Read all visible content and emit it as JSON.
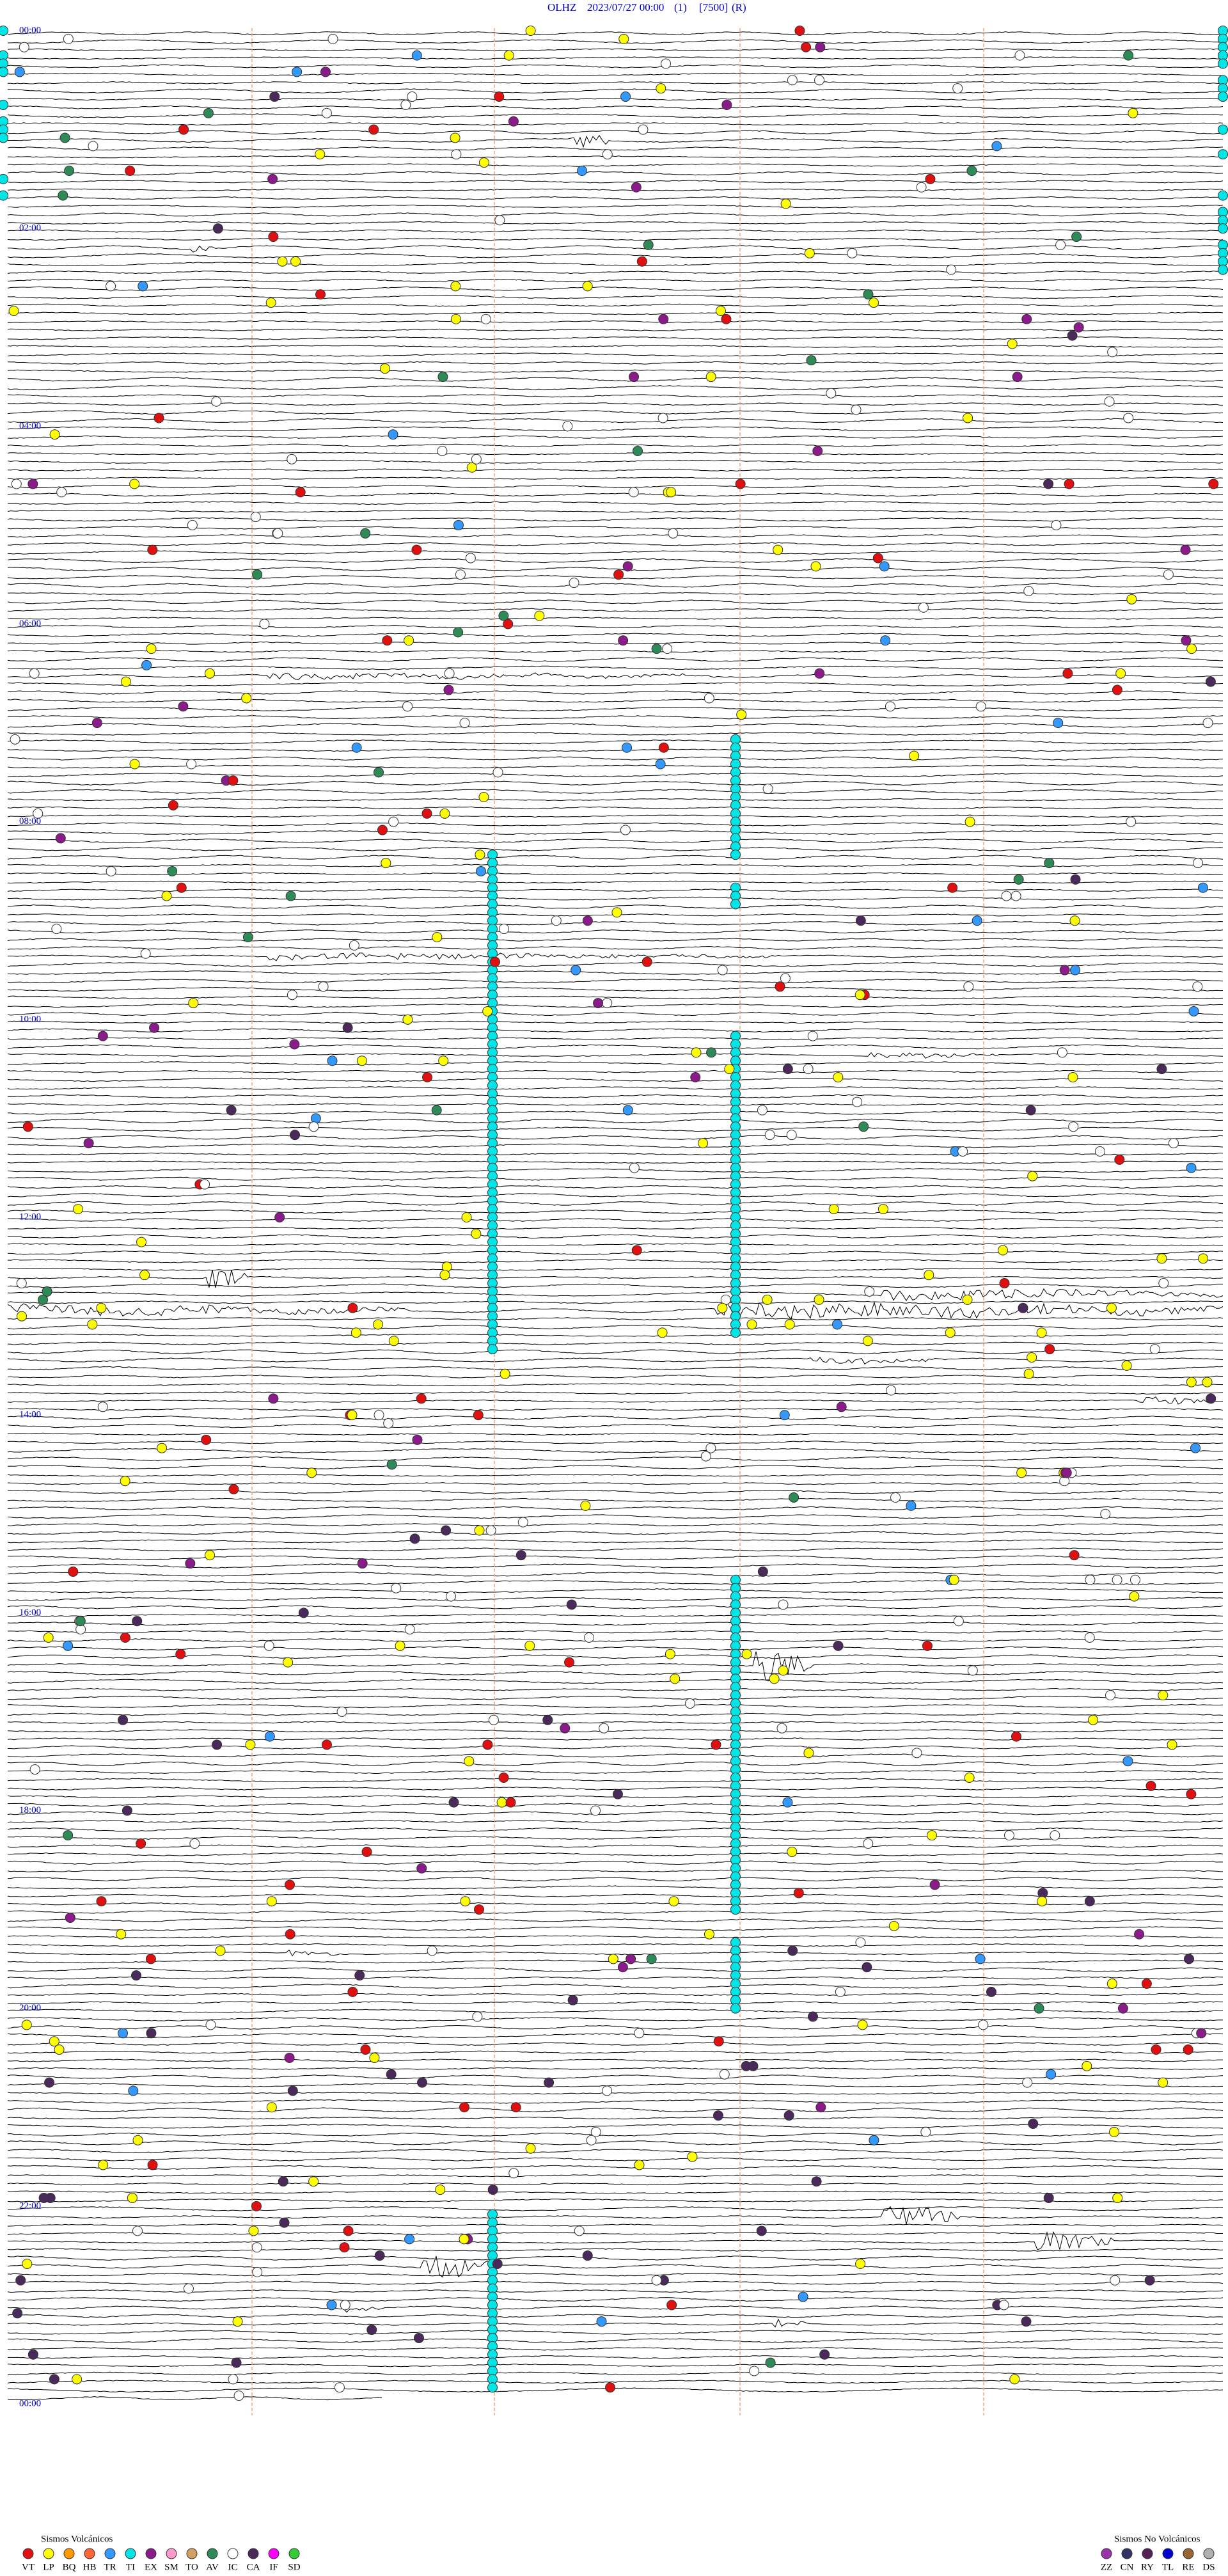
{
  "header": {
    "station": "OLHZ",
    "date": "2023/07/27 00:00",
    "channel": "(1)",
    "scale": "[7500]",
    "mode": "(R)"
  },
  "time_labels": [
    "00:00",
    "02:00",
    "04:00",
    "06:00",
    "08:00",
    "10:00",
    "12:00",
    "14:00",
    "16:00",
    "18:00",
    "20:00",
    "22:00",
    "00:00"
  ],
  "legend": {
    "volcanic": {
      "title": "Sismos Volcánicos",
      "items": [
        {
          "code": "VT",
          "color": "#e01010"
        },
        {
          "code": "LP",
          "color": "#ffff00"
        },
        {
          "code": "BQ",
          "color": "#ff9900"
        },
        {
          "code": "HB",
          "color": "#ff6633"
        },
        {
          "code": "TR",
          "color": "#3399ff"
        },
        {
          "code": "TI",
          "color": "#00e5e5"
        },
        {
          "code": "EX",
          "color": "#8b1a8b"
        },
        {
          "code": "SM",
          "color": "#ff99cc"
        },
        {
          "code": "TO",
          "color": "#d2a060"
        },
        {
          "code": "AV",
          "color": "#2e8b57"
        },
        {
          "code": "IC",
          "color": "#ffffff"
        },
        {
          "code": "CA",
          "color": "#4a2a5a"
        },
        {
          "code": "IF",
          "color": "#ff00ff"
        },
        {
          "code": "SD",
          "color": "#33cc33"
        }
      ]
    },
    "non_volcanic": {
      "title": "Sismos No Volcánicos",
      "items": [
        {
          "code": "ZZ",
          "color": "#9933aa"
        },
        {
          "code": "CN",
          "color": "#333366"
        },
        {
          "code": "RY",
          "color": "#552255"
        },
        {
          "code": "TL",
          "color": "#0000cc"
        },
        {
          "code": "RE",
          "color": "#996633"
        },
        {
          "code": "DS",
          "color": "#b0b0b0"
        }
      ]
    }
  }
}
